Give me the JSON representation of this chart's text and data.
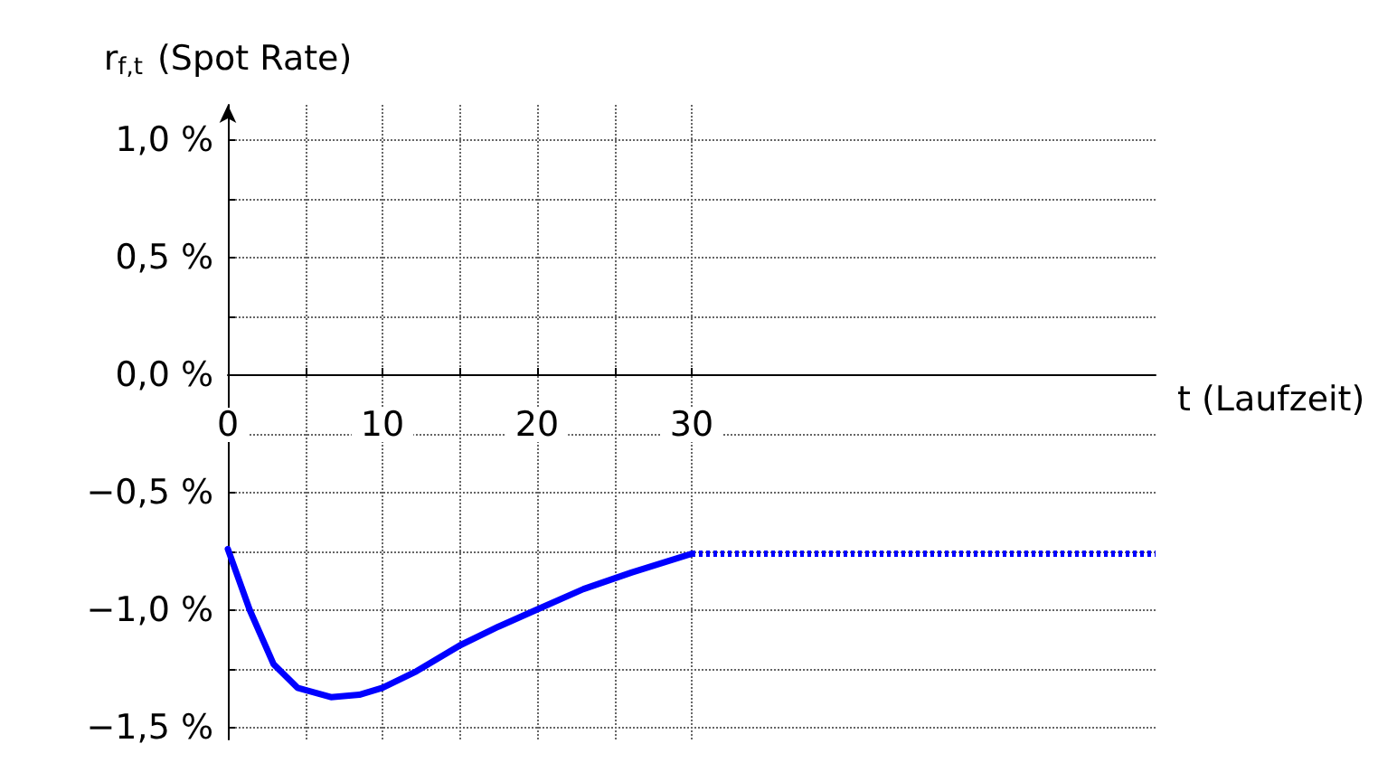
{
  "chart_data": {
    "type": "line",
    "ylabel": "r$_{f,t}$ (Spot Rate)",
    "xlabel": "t (Laufzeit)",
    "series": [
      {
        "color": "#0000ff",
        "line_style": "solid",
        "x": [
          0,
          1.42,
          2.96,
          4.5,
          6.67,
          8.5,
          10,
          12.2,
          15,
          17.5,
          19.9,
          23,
          26.1,
          30
        ],
        "values": [
          -0.74,
          -1.0,
          -1.23,
          -1.33,
          -1.37,
          -1.36,
          -1.33,
          -1.26,
          -1.15,
          -1.07,
          -1.0,
          -0.91,
          -0.84,
          -0.76
        ]
      },
      {
        "color": "#0000ff",
        "line_style": "dotted",
        "x": [
          30,
          60
        ],
        "values": [
          -0.76,
          -0.76
        ]
      }
    ],
    "xlim": [
      0,
      60
    ],
    "ylim": [
      -1.55,
      1.15
    ],
    "xticks": [
      0,
      {
        "value": 5,
        "label": null
      },
      10,
      {
        "value": 15,
        "label": null
      },
      20,
      {
        "value": 25,
        "label": null
      },
      30
    ],
    "yticks": [
      {
        "value": -1.5,
        "label": "−1,5 %"
      },
      {
        "value": -1.25,
        "label": null
      },
      {
        "value": -1,
        "label": "−1,0 %"
      },
      {
        "value": -0.75,
        "label": null
      },
      {
        "value": -0.5,
        "label": "−0,5 %"
      },
      {
        "value": -0.25,
        "label": null
      },
      {
        "value": 0,
        "label": "0,0 %"
      },
      {
        "value": 0.25,
        "label": null
      },
      {
        "value": 0.5,
        "label": "0,5 %"
      },
      {
        "value": 0.75,
        "label": null
      },
      {
        "value": 1,
        "label": "1,0 %"
      }
    ],
    "grid": true,
    "marker": "none"
  }
}
